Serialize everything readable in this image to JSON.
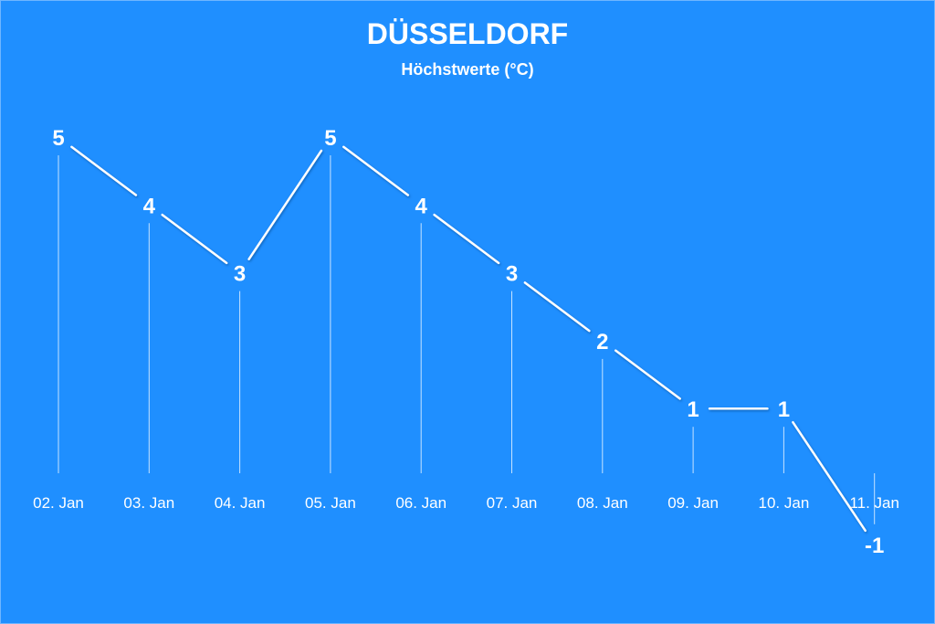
{
  "chart_data": {
    "type": "line",
    "title": "DÜSSELDORF",
    "subtitle": "Höchstwerte (°C)",
    "categories": [
      "02. Jan",
      "03. Jan",
      "04. Jan",
      "05. Jan",
      "06. Jan",
      "07. Jan",
      "08. Jan",
      "09. Jan",
      "10. Jan",
      "11. Jan"
    ],
    "series": [
      {
        "values": [
          5,
          4,
          3,
          5,
          4,
          3,
          2,
          1,
          1,
          -1
        ]
      }
    ],
    "ylim": [
      -1,
      5
    ],
    "grid": false,
    "legend": "none",
    "colors": {
      "background": "#1e90ff",
      "line": "#ffffff",
      "text": "#ffffff"
    }
  }
}
